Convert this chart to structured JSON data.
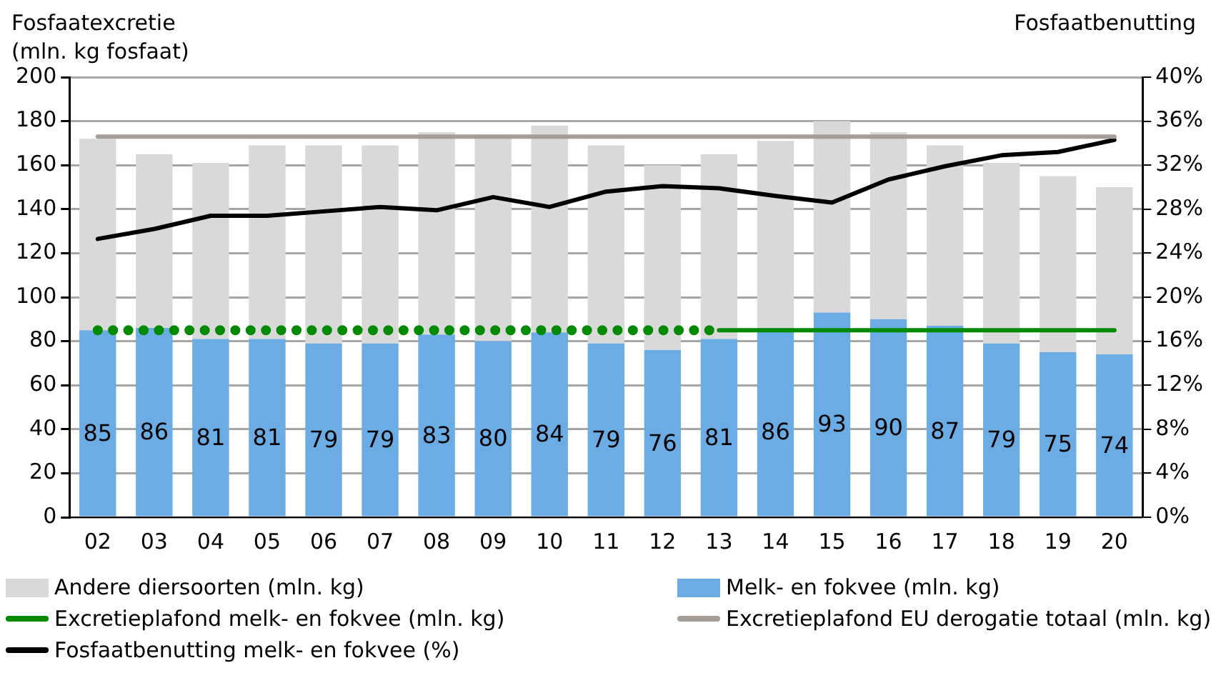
{
  "chart_data": {
    "type": "bar",
    "stacked": true,
    "ylabel": "Fosfaatexcretie\n(mln. kg fosfaat)",
    "y2label": "Fosfaatbenutting",
    "categories": [
      "02",
      "03",
      "04",
      "05",
      "06",
      "07",
      "08",
      "09",
      "10",
      "11",
      "12",
      "13",
      "14",
      "15",
      "16",
      "17",
      "18",
      "19",
      "20"
    ],
    "ylim": [
      0,
      200
    ],
    "yticks": [
      0,
      20,
      40,
      60,
      80,
      100,
      120,
      140,
      160,
      180,
      200
    ],
    "y2lim": [
      0,
      40
    ],
    "y2ticks": [
      {
        "value": 0,
        "label": "0%"
      },
      {
        "value": 4,
        "label": "4%"
      },
      {
        "value": 8,
        "label": "8%"
      },
      {
        "value": 12,
        "label": "12%"
      },
      {
        "value": 16,
        "label": "16%"
      },
      {
        "value": 20,
        "label": "20%"
      },
      {
        "value": 24,
        "label": "24%"
      },
      {
        "value": 28,
        "label": "28%"
      },
      {
        "value": 32,
        "label": "32%"
      },
      {
        "value": 36,
        "label": "36%"
      },
      {
        "value": 40,
        "label": "40%"
      }
    ],
    "grid": "y",
    "legend": "bottom",
    "series": [
      {
        "name": "Melk- en fokvee (mln. kg)",
        "color": "#6aace3",
        "values": [
          85,
          86,
          81,
          81,
          79,
          79,
          83,
          80,
          84,
          79,
          76,
          81,
          86,
          93,
          90,
          87,
          79,
          75,
          74
        ],
        "value_labels": [
          "85",
          "86",
          "81",
          "81",
          "79",
          "79",
          "83",
          "80",
          "84",
          "79",
          "76",
          "81",
          "86",
          "93",
          "90",
          "87",
          "79",
          "75",
          "74"
        ]
      },
      {
        "name": "Andere diersoorten (mln. kg)",
        "color": "#d9d9d9",
        "values": [
          87,
          79,
          80,
          88,
          90,
          90,
          92,
          94,
          94,
          90,
          84,
          84,
          85,
          87,
          85,
          82,
          82,
          80,
          76
        ]
      },
      {
        "name": "Excretieplafond melk- en fokvee (mln. kg)",
        "type": "line",
        "color": "#008a00",
        "line_style": "dotted",
        "marker": "none",
        "values": [
          85,
          85,
          85,
          85,
          85,
          85,
          85,
          85,
          85,
          85,
          85,
          85,
          null,
          null,
          null,
          null,
          null,
          null,
          null
        ]
      },
      {
        "type": "line",
        "color": "#008a00",
        "line_style": "solid",
        "marker": "none",
        "values": [
          null,
          null,
          null,
          null,
          null,
          null,
          null,
          null,
          null,
          null,
          null,
          85,
          85,
          85,
          85,
          85,
          85,
          85,
          85
        ]
      },
      {
        "name": "Excretieplafond EU derogatie totaal (mln. kg)",
        "type": "line",
        "color": "#a49d98",
        "line_style": "solid",
        "marker": "none",
        "values": [
          173,
          173,
          173,
          173,
          173,
          173,
          173,
          173,
          173,
          173,
          173,
          173,
          173,
          173,
          173,
          173,
          173,
          173,
          173
        ]
      },
      {
        "name": "Fosfaatbenutting melk- en fokvee (%)",
        "type": "line",
        "axis": "y2",
        "color": "#000000",
        "line_style": "solid",
        "marker": "none",
        "values": [
          25.3,
          26.2,
          27.4,
          27.4,
          27.8,
          28.2,
          27.9,
          29.1,
          28.2,
          29.6,
          30.1,
          29.9,
          29.2,
          28.6,
          30.7,
          31.9,
          32.9,
          33.2,
          34.3
        ]
      }
    ]
  }
}
